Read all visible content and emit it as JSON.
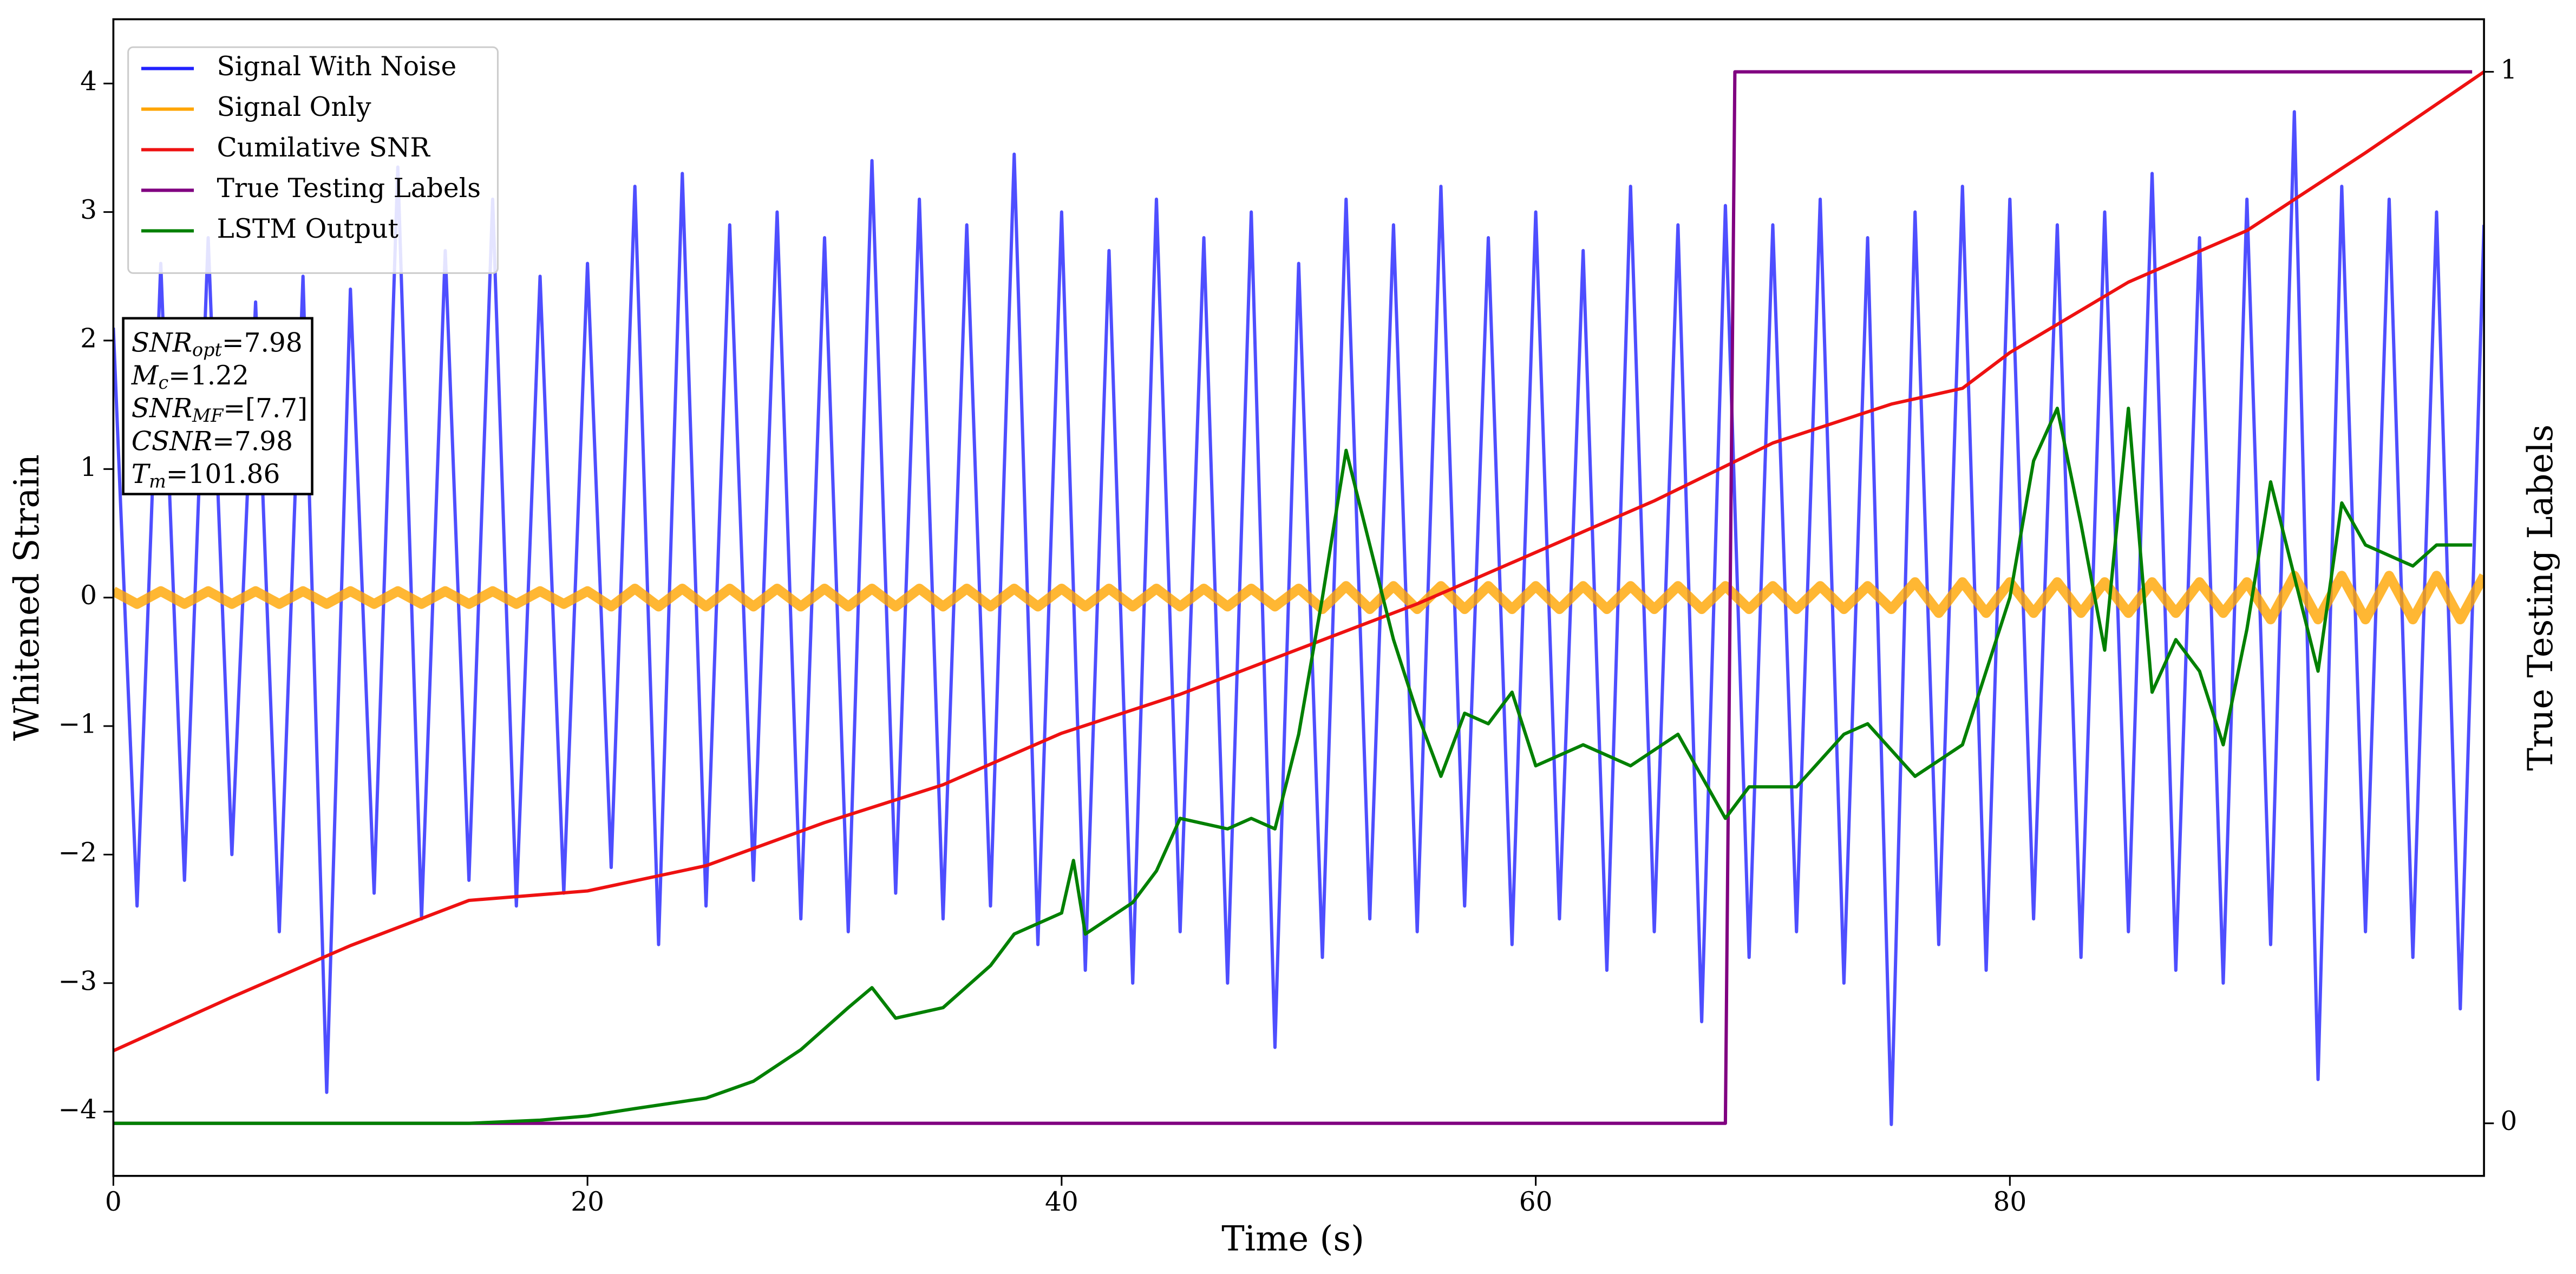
{
  "chart_data": {
    "type": "line",
    "xlabel": "Time (s)",
    "ylabel": "Whitened Strain",
    "y2label": "True Testing Labels",
    "xlim": [
      0,
      100
    ],
    "ylim": [
      -4.5,
      4.5
    ],
    "y2lim": [
      -0.05,
      1.05
    ],
    "xticks": [
      0,
      20,
      40,
      60,
      80
    ],
    "yticks": [
      {
        "value": -4,
        "label": "−4"
      },
      {
        "value": -3,
        "label": "−3"
      },
      {
        "value": -2,
        "label": "−2"
      },
      {
        "value": -1,
        "label": "−1"
      },
      0,
      1,
      2,
      3,
      4
    ],
    "y2ticks": [
      0,
      1
    ],
    "legend": "upper left",
    "series": [
      {
        "name": "Signal With Noise",
        "color": "#2222ff",
        "x": [
          0,
          1,
          2,
          3,
          4,
          5,
          6,
          7,
          8,
          9,
          10,
          11,
          12,
          13,
          14,
          15,
          16,
          17,
          18,
          19,
          20,
          21,
          22,
          23,
          24,
          25,
          26,
          27,
          28,
          29,
          30,
          31,
          32,
          33,
          34,
          35,
          36,
          37,
          38,
          39,
          40,
          41,
          42,
          43,
          44,
          45,
          46,
          47,
          48,
          49,
          50,
          51,
          52,
          53,
          54,
          55,
          56,
          57,
          58,
          59,
          60,
          61,
          62,
          63,
          64,
          65,
          66,
          67,
          68,
          69,
          70,
          71,
          72,
          73,
          74,
          75,
          76,
          77,
          78,
          79,
          80,
          81,
          82,
          83,
          84,
          85,
          86,
          87,
          88,
          89,
          90,
          91,
          92,
          93,
          94,
          95,
          96,
          97,
          98,
          99,
          100
        ],
        "values": [
          2.1,
          -2.4,
          2.6,
          -2.2,
          2.8,
          -2.0,
          2.3,
          -2.6,
          2.5,
          -3.85,
          2.4,
          -2.3,
          3.35,
          -2.5,
          2.7,
          -2.2,
          3.1,
          -2.4,
          2.5,
          -2.3,
          2.6,
          -2.1,
          3.2,
          -2.7,
          3.3,
          -2.4,
          2.9,
          -2.2,
          3.0,
          -2.5,
          2.8,
          -2.6,
          3.4,
          -2.3,
          3.1,
          -2.5,
          2.9,
          -2.4,
          3.45,
          -2.7,
          3.0,
          -2.9,
          2.7,
          -3.0,
          3.1,
          -2.6,
          2.8,
          -3.0,
          3.0,
          -3.5,
          2.6,
          -2.8,
          3.1,
          -2.5,
          2.9,
          -2.6,
          3.2,
          -2.4,
          2.8,
          -2.7,
          3.0,
          -2.5,
          2.7,
          -2.9,
          3.2,
          -2.6,
          2.9,
          -3.3,
          3.05,
          -2.8,
          2.9,
          -2.6,
          3.1,
          -3.0,
          2.8,
          -4.1,
          3.0,
          -2.7,
          3.2,
          -2.9,
          3.1,
          -2.5,
          2.9,
          -2.8,
          3.0,
          -2.6,
          3.3,
          -2.9,
          2.8,
          -3.0,
          3.1,
          -2.7,
          3.78,
          -3.75,
          3.2,
          -2.6,
          3.1,
          -2.8,
          3.0,
          -3.2,
          2.9
        ]
      },
      {
        "name": "Signal Only",
        "color": "#ffa500",
        "x": [
          0,
          1,
          2,
          3,
          4,
          5,
          6,
          7,
          8,
          9,
          10,
          11,
          12,
          13,
          14,
          15,
          16,
          17,
          18,
          19,
          20,
          21,
          22,
          23,
          24,
          25,
          26,
          27,
          28,
          29,
          30,
          31,
          32,
          33,
          34,
          35,
          36,
          37,
          38,
          39,
          40,
          41,
          42,
          43,
          44,
          45,
          46,
          47,
          48,
          49,
          50,
          51,
          52,
          53,
          54,
          55,
          56,
          57,
          58,
          59,
          60,
          61,
          62,
          63,
          64,
          65,
          66,
          67,
          68,
          69,
          70,
          71,
          72,
          73,
          74,
          75,
          76,
          77,
          78,
          79,
          80,
          81,
          82,
          83,
          84,
          85,
          86,
          87,
          88,
          89,
          90,
          91,
          92,
          93,
          94,
          95,
          96,
          97,
          98,
          99,
          100
        ],
        "values": [
          0.05,
          -0.05,
          0.05,
          -0.05,
          0.05,
          -0.05,
          0.05,
          -0.05,
          0.05,
          -0.05,
          0.05,
          -0.05,
          0.05,
          -0.05,
          0.05,
          -0.05,
          0.05,
          -0.05,
          0.05,
          -0.05,
          0.05,
          -0.07,
          0.07,
          -0.07,
          0.07,
          -0.07,
          0.07,
          -0.07,
          0.07,
          -0.07,
          0.07,
          -0.07,
          0.07,
          -0.07,
          0.07,
          -0.07,
          0.07,
          -0.07,
          0.07,
          -0.07,
          0.07,
          -0.07,
          0.07,
          -0.07,
          0.07,
          -0.07,
          0.07,
          -0.07,
          0.07,
          -0.07,
          0.07,
          -0.09,
          0.09,
          -0.09,
          0.09,
          -0.09,
          0.09,
          -0.09,
          0.09,
          -0.09,
          0.09,
          -0.09,
          0.09,
          -0.09,
          0.09,
          -0.09,
          0.09,
          -0.09,
          0.09,
          -0.09,
          0.09,
          -0.09,
          0.09,
          -0.09,
          0.09,
          -0.09,
          0.12,
          -0.12,
          0.12,
          -0.12,
          0.12,
          -0.12,
          0.12,
          -0.12,
          0.12,
          -0.12,
          0.12,
          -0.12,
          0.12,
          -0.12,
          0.12,
          -0.17,
          0.17,
          -0.17,
          0.17,
          -0.17,
          0.17,
          -0.17,
          0.17,
          -0.17,
          0.17
        ]
      },
      {
        "name": "Cumilative SNR",
        "color": "#ee1111",
        "axis": "y2",
        "x": [
          0,
          5,
          10,
          15,
          20,
          25,
          30,
          35,
          40,
          45,
          50,
          55,
          60,
          65,
          70,
          75,
          78,
          80,
          85,
          90,
          95,
          100
        ],
        "values": [
          0.069,
          0.12,
          0.169,
          0.212,
          0.221,
          0.245,
          0.286,
          0.322,
          0.371,
          0.408,
          0.451,
          0.494,
          0.543,
          0.592,
          0.647,
          0.684,
          0.699,
          0.733,
          0.8,
          0.849,
          0.923,
          1.0
        ]
      },
      {
        "name": "True Testing Labels",
        "color": "#800080",
        "axis": "y2",
        "x": [
          0,
          68,
          68.4,
          99.5
        ],
        "values": [
          0,
          0,
          1,
          1
        ]
      },
      {
        "name": "LSTM Output",
        "color": "#008000",
        "axis": "y2",
        "x": [
          0,
          15,
          18,
          20,
          22,
          25,
          27,
          29,
          31,
          32,
          33,
          35,
          37,
          38,
          40,
          40.5,
          41,
          43,
          44,
          45,
          47,
          48,
          49,
          50,
          51,
          52,
          53,
          54,
          55,
          56,
          57,
          58,
          59,
          60,
          62,
          64,
          66,
          68,
          69,
          71,
          73,
          74,
          76,
          78,
          80,
          81,
          82,
          83,
          84,
          85,
          86,
          87,
          88,
          89,
          90,
          91,
          93,
          94,
          95,
          97,
          98,
          99.5
        ],
        "values": [
          0,
          0,
          0.003,
          0.007,
          0.014,
          0.024,
          0.04,
          0.07,
          0.11,
          0.129,
          0.1,
          0.11,
          0.15,
          0.18,
          0.2,
          0.25,
          0.18,
          0.21,
          0.24,
          0.29,
          0.28,
          0.29,
          0.28,
          0.37,
          0.5,
          0.64,
          0.55,
          0.46,
          0.39,
          0.33,
          0.39,
          0.38,
          0.41,
          0.34,
          0.36,
          0.34,
          0.37,
          0.29,
          0.32,
          0.32,
          0.37,
          0.38,
          0.33,
          0.36,
          0.5,
          0.63,
          0.68,
          0.57,
          0.45,
          0.68,
          0.41,
          0.46,
          0.43,
          0.36,
          0.47,
          0.61,
          0.43,
          0.59,
          0.55,
          0.53,
          0.55,
          0.55
        ]
      }
    ],
    "annotation": [
      {
        "symbol": "SNR",
        "subscript": "opt",
        "text": "=7.98"
      },
      {
        "symbol": "M",
        "subscript": "c",
        "text": "=1.22"
      },
      {
        "symbol": "SNR",
        "subscript": "MF",
        "text": "=[7.7]"
      },
      {
        "symbol": "CSNR",
        "text": "=7.98"
      },
      {
        "symbol": "T",
        "subscript": "m",
        "text": "=101.86"
      }
    ]
  }
}
